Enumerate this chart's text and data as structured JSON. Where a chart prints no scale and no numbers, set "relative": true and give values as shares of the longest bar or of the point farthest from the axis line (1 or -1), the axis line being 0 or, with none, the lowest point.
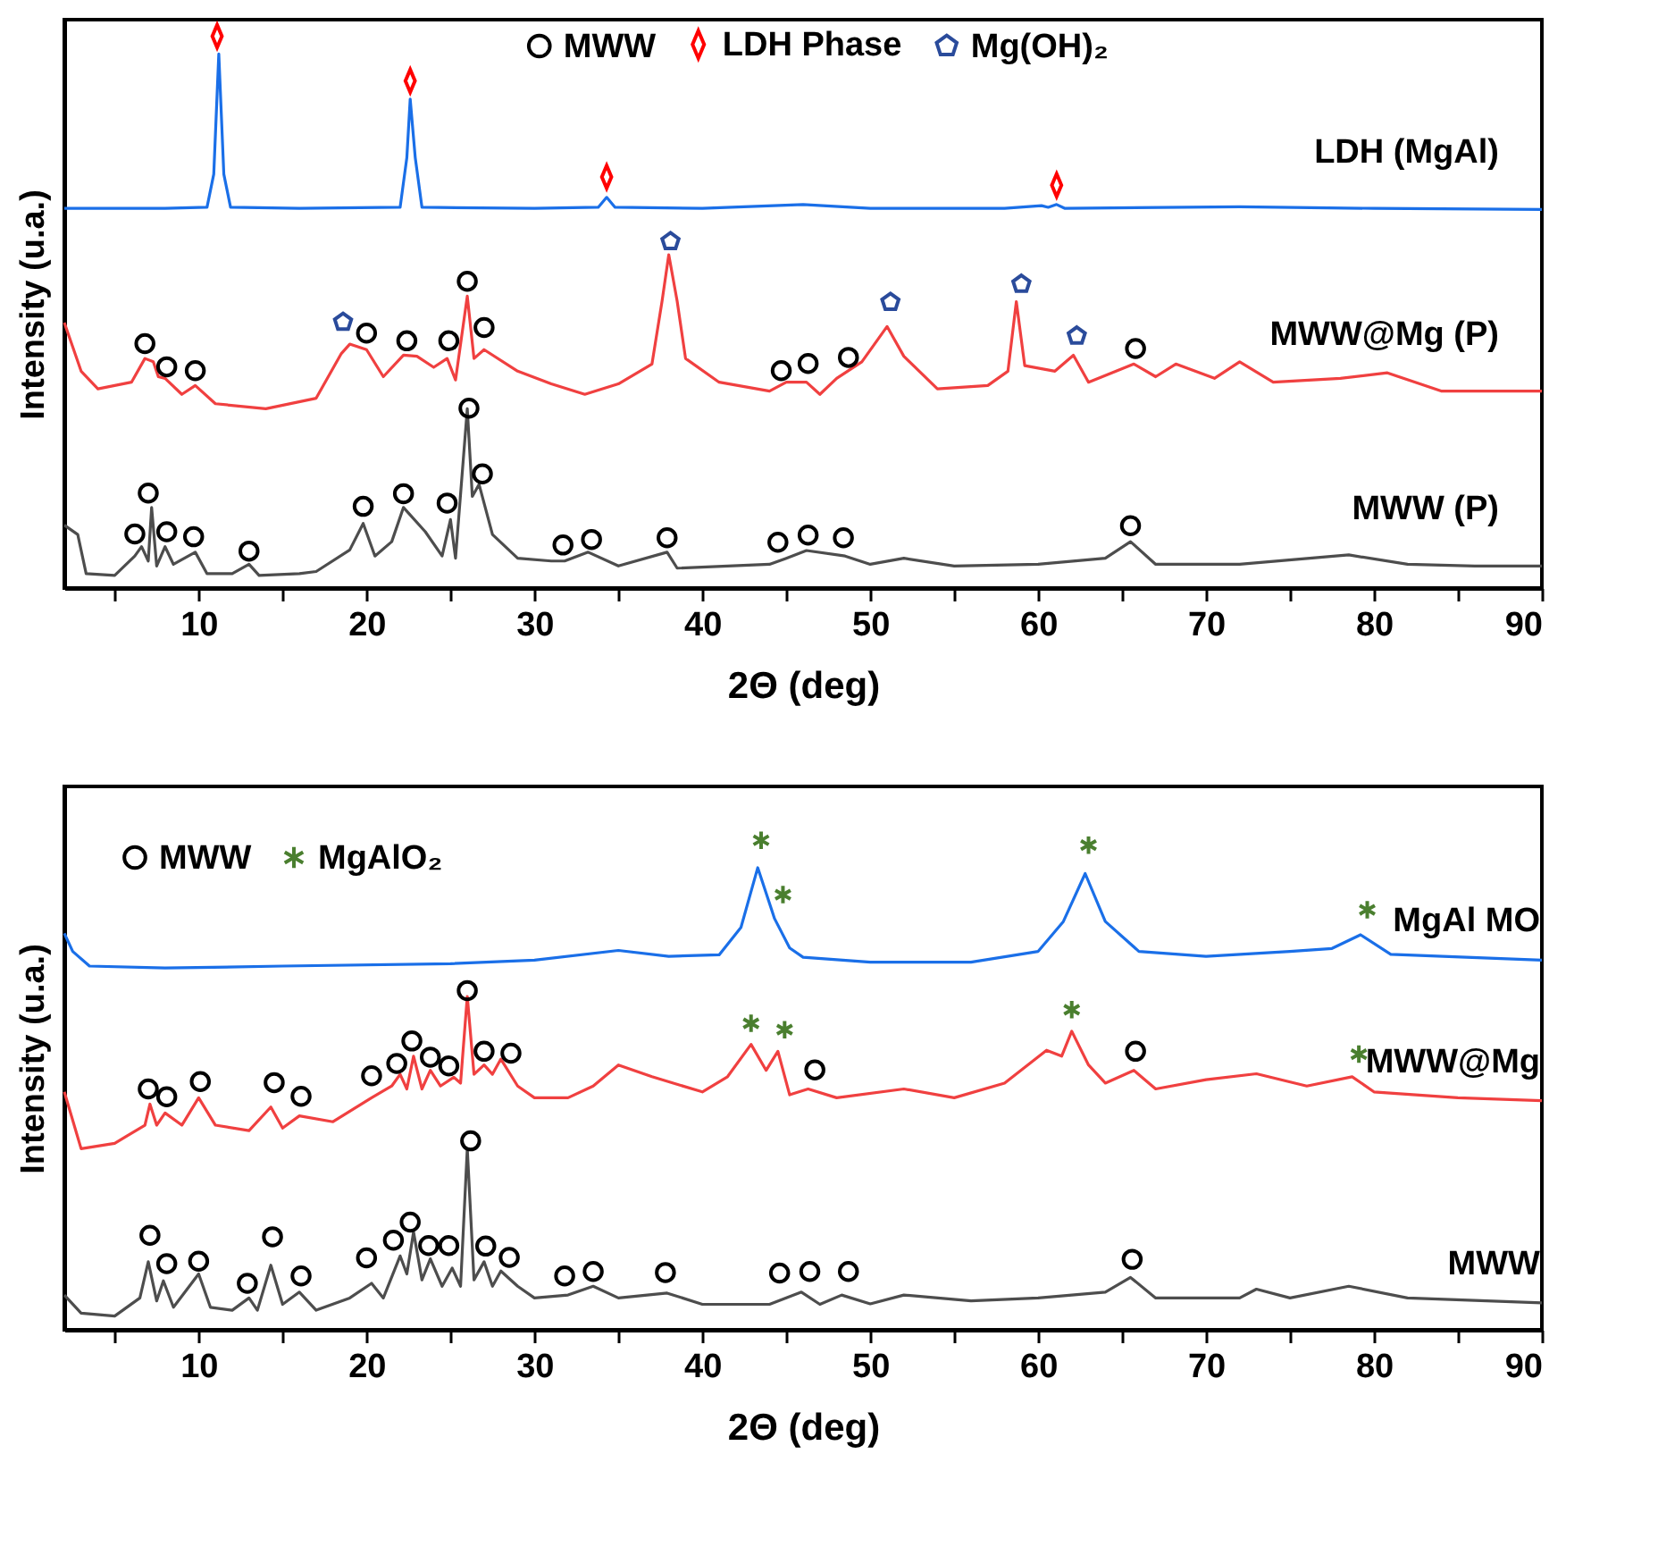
{
  "chart_data": [
    {
      "type": "line",
      "relative": true,
      "xlabel": "2Θ (deg)",
      "ylabel": "Intensity (u.a.)",
      "xlim": [
        2,
        90
      ],
      "xticks": [
        {
          "value": 5,
          "label": null
        },
        10,
        {
          "value": 15,
          "label": null
        },
        20,
        {
          "value": 25,
          "label": null
        },
        30,
        {
          "value": 35,
          "label": null
        },
        40,
        {
          "value": 45,
          "label": null
        },
        50,
        {
          "value": 55,
          "label": null
        },
        60,
        {
          "value": 65,
          "label": null
        },
        70,
        {
          "value": 75,
          "label": null
        },
        80,
        {
          "value": 85,
          "label": null
        },
        90
      ],
      "legend": "top",
      "series": [
        {
          "name": "LDH (MgAl)",
          "type": "line",
          "color": "#1a6fe8",
          "x": [
            2,
            8,
            10.5,
            10.9,
            11.2,
            11.5,
            11.9,
            16,
            22,
            22.4,
            22.6,
            22.9,
            23.3,
            30,
            33.8,
            34.3,
            34.8,
            40,
            46,
            50,
            58,
            60.2,
            60.6,
            61.1,
            61.6,
            72,
            80,
            90
          ],
          "values": [
            0.688,
            0.688,
            0.69,
            0.75,
            0.968,
            0.75,
            0.69,
            0.688,
            0.69,
            0.78,
            0.886,
            0.78,
            0.69,
            0.688,
            0.69,
            0.708,
            0.69,
            0.688,
            0.695,
            0.688,
            0.688,
            0.693,
            0.69,
            0.695,
            0.688,
            0.691,
            0.688,
            0.686
          ]
        },
        {
          "name": "MWW@Mg (P)",
          "type": "line",
          "color": "#f04040",
          "x": [
            2,
            3,
            4,
            6,
            6.8,
            7.3,
            7.6,
            8,
            9,
            9.8,
            11,
            14,
            17,
            18.5,
            19,
            20,
            21,
            22.2,
            23,
            24,
            24.8,
            25.3,
            26,
            26.4,
            27,
            29,
            31,
            33,
            35,
            37,
            37.6,
            38,
            38.5,
            39,
            41,
            44,
            45,
            46.2,
            47,
            48,
            49.5,
            51,
            52,
            54,
            57,
            58.2,
            58.7,
            59.2,
            61,
            62.1,
            63,
            65.7,
            67,
            68.2,
            70.5,
            72,
            74,
            78,
            80.8,
            84,
            90
          ],
          "values": [
            0.481,
            0.393,
            0.361,
            0.373,
            0.416,
            0.41,
            0.383,
            0.38,
            0.351,
            0.367,
            0.334,
            0.325,
            0.344,
            0.425,
            0.442,
            0.432,
            0.383,
            0.422,
            0.42,
            0.4,
            0.416,
            0.377,
            0.529,
            0.416,
            0.432,
            0.393,
            0.37,
            0.351,
            0.37,
            0.406,
            0.52,
            0.604,
            0.52,
            0.416,
            0.373,
            0.357,
            0.373,
            0.373,
            0.351,
            0.38,
            0.41,
            0.474,
            0.42,
            0.361,
            0.367,
            0.393,
            0.519,
            0.403,
            0.393,
            0.422,
            0.373,
            0.406,
            0.383,
            0.406,
            0.38,
            0.41,
            0.373,
            0.38,
            0.39,
            0.357,
            0.357
          ]
        },
        {
          "name": "MWW (P)",
          "type": "line",
          "color": "#4d4d4d",
          "x": [
            2,
            2.8,
            3.3,
            5,
            6.2,
            6.6,
            7,
            7.2,
            7.5,
            8,
            8.5,
            9.8,
            10.5,
            12,
            13,
            13.6,
            16,
            17,
            19,
            19.8,
            20.5,
            21.5,
            22.2,
            23.5,
            24.5,
            25,
            25.3,
            26,
            26.3,
            26.7,
            27.5,
            29,
            31,
            31.8,
            33.2,
            35,
            37.9,
            38.5,
            44,
            45,
            46.2,
            48.5,
            50,
            52,
            55,
            60,
            64,
            65.5,
            67,
            72,
            78.5,
            82,
            86,
            90
          ],
          "values": [
            0.114,
            0.097,
            0.026,
            0.023,
            0.058,
            0.075,
            0.049,
            0.146,
            0.04,
            0.075,
            0.043,
            0.065,
            0.026,
            0.026,
            0.043,
            0.023,
            0.026,
            0.03,
            0.069,
            0.117,
            0.058,
            0.084,
            0.146,
            0.102,
            0.058,
            0.124,
            0.054,
            0.325,
            0.166,
            0.188,
            0.097,
            0.054,
            0.049,
            0.049,
            0.065,
            0.04,
            0.065,
            0.036,
            0.043,
            0.054,
            0.068,
            0.058,
            0.043,
            0.054,
            0.04,
            0.043,
            0.054,
            0.084,
            0.043,
            0.043,
            0.06,
            0.043,
            0.04,
            0.04
          ]
        },
        {
          "name": "MWW",
          "type": "scatter",
          "marker": "circle",
          "color": "#000000",
          "x": [
            6.8,
            8.1,
            9.8,
            20.0,
            22.4,
            24.9,
            26.0,
            27.0,
            44.7,
            46.3,
            48.7,
            65.8,
            6.2,
            7.0,
            8.1,
            9.7,
            13.0,
            19.8,
            22.2,
            24.8,
            26.1,
            26.9,
            31.7,
            33.4,
            37.9,
            44.5,
            46.3,
            48.4,
            65.5
          ],
          "values": [
            0.443,
            0.401,
            0.394,
            0.462,
            0.448,
            0.448,
            0.556,
            0.472,
            0.394,
            0.407,
            0.418,
            0.434,
            0.098,
            0.172,
            0.102,
            0.093,
            0.067,
            0.148,
            0.171,
            0.154,
            0.326,
            0.207,
            0.078,
            0.088,
            0.091,
            0.083,
            0.096,
            0.091,
            0.113
          ]
        },
        {
          "name": "LDH Phase",
          "type": "scatter",
          "marker": "diamond",
          "color": "#ff0000",
          "x": [
            11.1,
            22.6,
            34.3,
            61.1
          ],
          "values": [
            1.0,
            0.919,
            0.745,
            0.73
          ]
        },
        {
          "name": "Mg(OH)₂",
          "type": "scatter",
          "color": "#2a4b9b",
          "x": [
            18.6,
            38.1,
            51.2,
            59.0,
            62.3
          ],
          "values": [
            0.482,
            0.628,
            0.518,
            0.551,
            0.457
          ]
        }
      ]
    },
    {
      "type": "line",
      "relative": true,
      "xlabel": "2Θ (deg)",
      "ylabel": "Intensity (u.a.)",
      "xlim": [
        2,
        90
      ],
      "xticks": [
        {
          "value": 5,
          "label": null
        },
        10,
        {
          "value": 15,
          "label": null
        },
        20,
        {
          "value": 25,
          "label": null
        },
        30,
        {
          "value": 35,
          "label": null
        },
        40,
        {
          "value": 45,
          "label": null
        },
        50,
        {
          "value": 55,
          "label": null
        },
        60,
        {
          "value": 65,
          "label": null
        },
        70,
        {
          "value": 75,
          "label": null
        },
        80,
        {
          "value": 85,
          "label": null
        },
        90
      ],
      "legend": "top left",
      "series": [
        {
          "name": "MgAl MO",
          "type": "line",
          "color": "#1a6fe8",
          "x": [
            2,
            2.5,
            3.5,
            8,
            15,
            25,
            30,
            35,
            38,
            41,
            42.3,
            43.3,
            44.3,
            45.2,
            46,
            50,
            56,
            60,
            61.5,
            62.8,
            64,
            66,
            70,
            75,
            77.5,
            79.2,
            81,
            90
          ],
          "values": [
            0.81,
            0.773,
            0.743,
            0.739,
            0.743,
            0.748,
            0.755,
            0.775,
            0.763,
            0.766,
            0.822,
            0.944,
            0.84,
            0.78,
            0.761,
            0.751,
            0.751,
            0.773,
            0.834,
            0.932,
            0.834,
            0.773,
            0.763,
            0.773,
            0.779,
            0.807,
            0.767,
            0.755
          ]
        },
        {
          "name": "MWW@Mg",
          "type": "line",
          "color": "#f04040",
          "x": [
            2,
            3,
            5,
            6.8,
            7.1,
            7.5,
            8,
            9,
            10,
            11,
            13,
            14.3,
            15,
            16,
            18,
            20.3,
            21.5,
            22,
            22.4,
            22.8,
            23.3,
            23.8,
            24.4,
            25.2,
            25.6,
            26,
            26.4,
            27,
            27.5,
            28,
            29,
            30,
            32,
            33.5,
            35,
            37,
            40,
            41.5,
            42.9,
            43.8,
            44.5,
            45.2,
            46.3,
            48,
            52,
            55,
            58,
            60.5,
            61.4,
            62,
            63,
            64,
            65.7,
            67,
            70,
            73,
            76,
            78.7,
            80,
            85,
            90
          ],
          "values": [
            0.486,
            0.37,
            0.381,
            0.418,
            0.461,
            0.418,
            0.443,
            0.418,
            0.474,
            0.418,
            0.407,
            0.455,
            0.412,
            0.437,
            0.425,
            0.474,
            0.498,
            0.522,
            0.492,
            0.559,
            0.492,
            0.53,
            0.498,
            0.516,
            0.504,
            0.681,
            0.522,
            0.541,
            0.522,
            0.553,
            0.498,
            0.474,
            0.474,
            0.498,
            0.541,
            0.517,
            0.486,
            0.517,
            0.583,
            0.53,
            0.569,
            0.48,
            0.492,
            0.474,
            0.492,
            0.474,
            0.504,
            0.571,
            0.559,
            0.61,
            0.541,
            0.504,
            0.53,
            0.492,
            0.511,
            0.523,
            0.498,
            0.517,
            0.486,
            0.474,
            0.468
          ]
        },
        {
          "name": "MWW",
          "type": "line",
          "color": "#4d4d4d",
          "x": [
            2,
            3,
            5,
            6.5,
            7,
            7.5,
            7.9,
            8.5,
            10,
            10.7,
            12,
            13,
            13.5,
            14.3,
            15,
            16,
            17,
            19,
            20.3,
            21,
            22,
            22.4,
            22.8,
            23.3,
            23.8,
            24.5,
            25.1,
            25.6,
            26,
            26.4,
            27,
            27.5,
            28,
            29,
            30,
            32,
            33.5,
            35,
            37.9,
            40,
            44,
            45.9,
            47,
            48.3,
            50,
            52,
            56,
            60,
            64,
            65.5,
            67,
            72,
            73,
            75,
            78.5,
            82,
            90
          ],
          "values": [
            0.071,
            0.034,
            0.028,
            0.065,
            0.139,
            0.059,
            0.1,
            0.046,
            0.114,
            0.046,
            0.04,
            0.065,
            0.04,
            0.132,
            0.052,
            0.077,
            0.04,
            0.065,
            0.095,
            0.065,
            0.151,
            0.114,
            0.2,
            0.102,
            0.145,
            0.089,
            0.126,
            0.089,
            0.37,
            0.102,
            0.139,
            0.089,
            0.12,
            0.089,
            0.065,
            0.071,
            0.089,
            0.065,
            0.075,
            0.052,
            0.052,
            0.077,
            0.052,
            0.071,
            0.053,
            0.071,
            0.059,
            0.065,
            0.077,
            0.107,
            0.065,
            0.065,
            0.083,
            0.065,
            0.089,
            0.065,
            0.055
          ]
        },
        {
          "name": "MWW",
          "type": "scatter",
          "marker": "circle",
          "color": "#000000",
          "x": [
            7.0,
            8.1,
            10.1,
            14.5,
            16.1,
            20.3,
            21.8,
            22.7,
            23.8,
            24.9,
            26.0,
            27.0,
            28.6,
            46.7,
            65.8,
            7.1,
            8.1,
            10.0,
            12.9,
            14.4,
            16.1,
            20.0,
            21.6,
            22.6,
            23.7,
            24.9,
            26.2,
            27.1,
            28.5,
            31.8,
            33.5,
            37.8,
            44.6,
            46.4,
            48.7,
            65.6
          ],
          "values": [
            0.492,
            0.476,
            0.507,
            0.505,
            0.477,
            0.519,
            0.544,
            0.59,
            0.557,
            0.539,
            0.693,
            0.569,
            0.565,
            0.531,
            0.569,
            0.193,
            0.135,
            0.14,
            0.095,
            0.19,
            0.11,
            0.147,
            0.183,
            0.22,
            0.172,
            0.172,
            0.386,
            0.171,
            0.148,
            0.11,
            0.119,
            0.117,
            0.116,
            0.119,
            0.119,
            0.144
          ]
        },
        {
          "name": "MgAlO₂",
          "type": "scatter",
          "marker": "cross",
          "color": "#4a7f2f",
          "x": [
            43.5,
            44.8,
            42.9,
            44.9,
            63.0,
            79.6,
            62.0,
            79.1
          ],
          "values": [
            1.0,
            0.889,
            0.626,
            0.613,
            0.99,
            0.858,
            0.654,
            0.563
          ]
        }
      ]
    }
  ]
}
